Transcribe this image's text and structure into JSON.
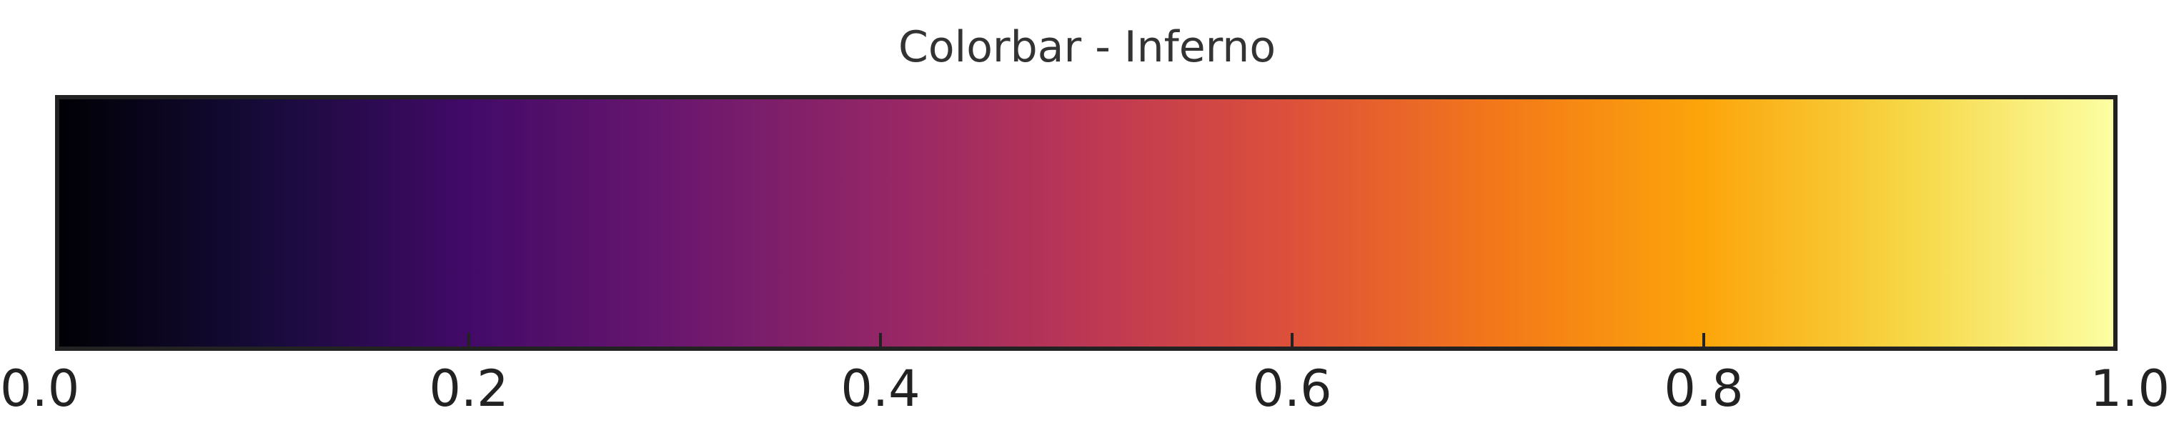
{
  "chart_data": {
    "type": "colorbar",
    "title": "Colorbar - Inferno",
    "colormap": "inferno",
    "orientation": "horizontal",
    "range": [
      0.0,
      1.0
    ],
    "ticks": [
      0.0,
      0.2,
      0.4,
      0.6,
      0.8,
      1.0
    ],
    "tick_labels": [
      "0.0",
      "0.2",
      "0.4",
      "0.6",
      "0.8",
      "1.0"
    ],
    "color_stops": [
      {
        "value": 0.0,
        "color": "#000004"
      },
      {
        "value": 0.1,
        "color": "#160B39"
      },
      {
        "value": 0.2,
        "color": "#420A68"
      },
      {
        "value": 0.3,
        "color": "#6A176E"
      },
      {
        "value": 0.4,
        "color": "#932667"
      },
      {
        "value": 0.5,
        "color": "#BC3754"
      },
      {
        "value": 0.6,
        "color": "#DD513A"
      },
      {
        "value": 0.7,
        "color": "#F37819"
      },
      {
        "value": 0.8,
        "color": "#FCA50A"
      },
      {
        "value": 0.9,
        "color": "#F6D746"
      },
      {
        "value": 1.0,
        "color": "#FCFFA4"
      }
    ],
    "title_color": "#333333",
    "frame_color": "#222222",
    "tick_color": "#222222"
  }
}
